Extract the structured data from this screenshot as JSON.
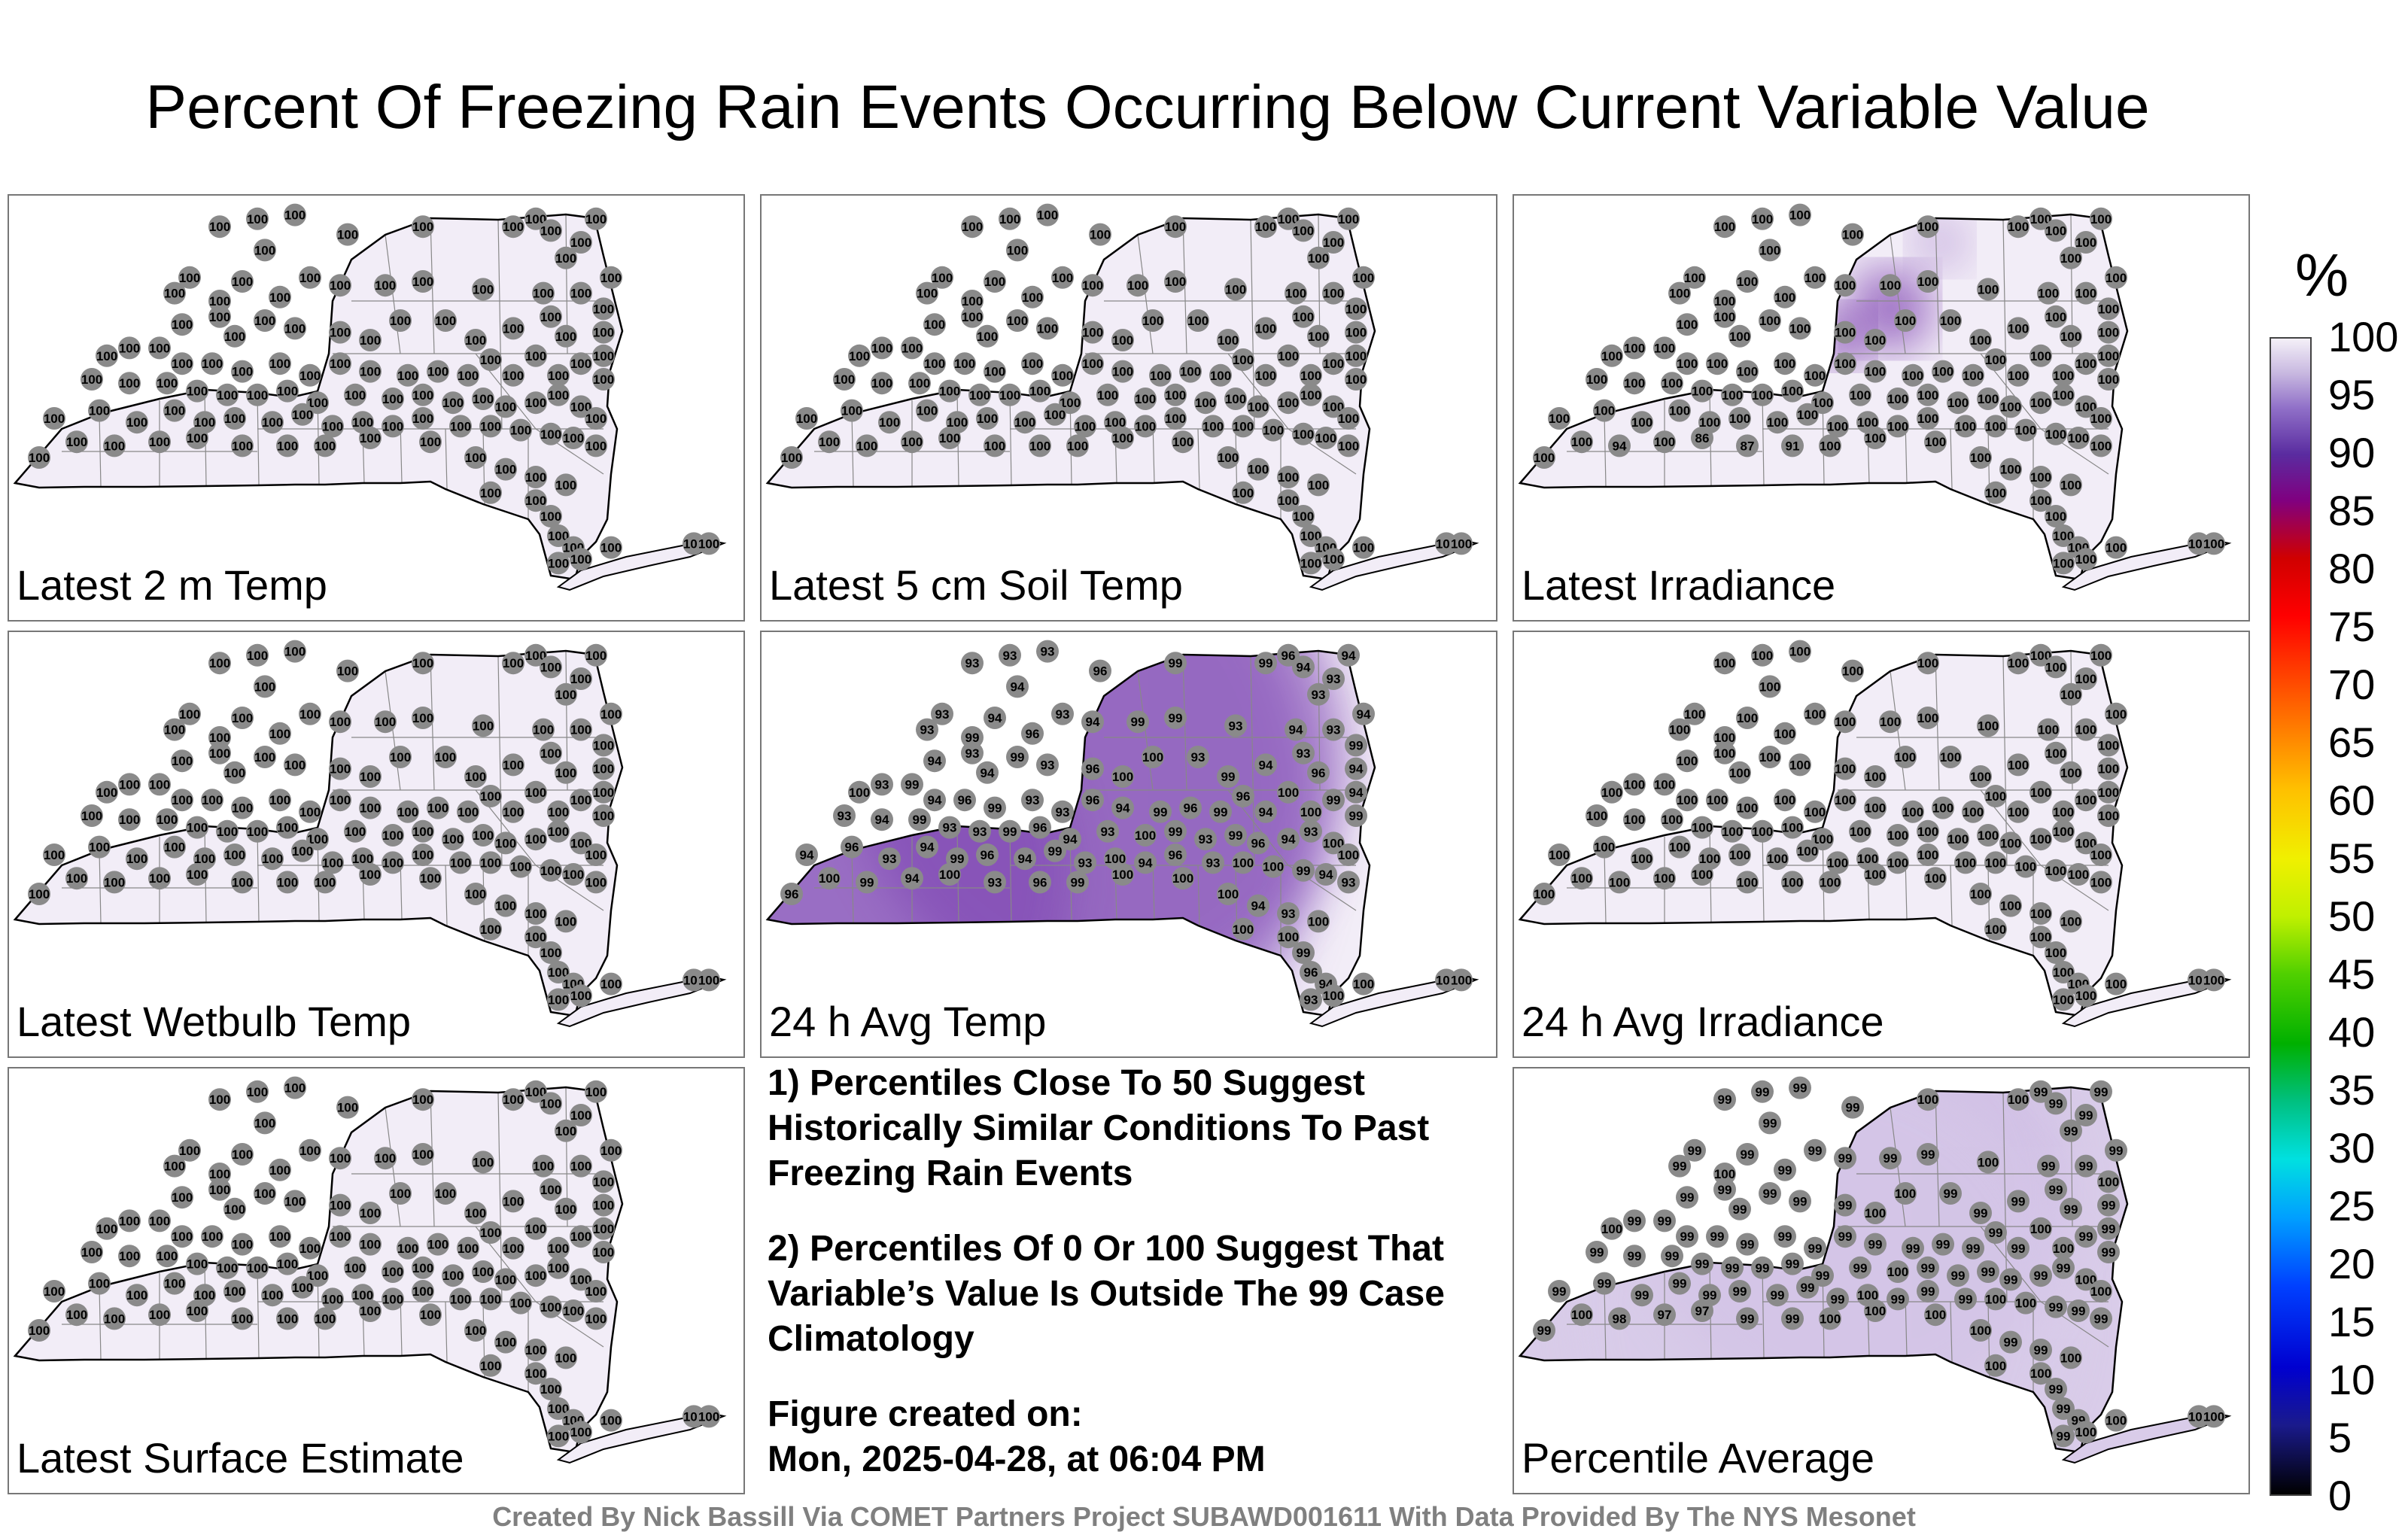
{
  "title": "Percent Of Freezing Rain Events Occurring Below Current Variable Value",
  "panels": [
    {
      "label": "Latest 2 m Temp",
      "values": [
        100,
        100,
        100,
        100,
        100,
        100,
        100,
        100,
        100,
        100,
        100,
        100,
        100,
        100,
        100,
        100,
        100,
        100,
        100,
        100,
        100,
        100,
        100,
        100,
        100,
        100,
        100,
        100,
        100,
        100,
        100,
        100,
        100,
        100,
        100,
        100,
        100,
        100,
        100,
        100,
        100,
        100,
        100,
        100,
        100,
        100,
        100,
        100,
        100,
        100,
        100,
        100,
        100,
        100,
        100,
        100,
        100,
        100,
        100,
        100,
        100,
        100,
        100,
        100,
        100,
        100,
        100,
        100,
        100,
        100,
        100,
        100,
        100,
        100,
        100,
        100,
        100,
        100,
        100,
        100,
        100,
        100,
        100,
        100,
        100,
        100,
        100,
        100,
        100,
        100,
        100,
        100,
        100,
        100,
        100,
        100,
        100,
        100,
        100,
        100,
        100,
        100,
        100,
        100,
        100,
        100,
        100,
        100,
        100,
        100,
        100,
        100,
        100,
        100,
        100,
        100,
        100,
        100,
        100,
        100
      ]
    },
    {
      "label": "Latest 5 cm Soil Temp",
      "values": [
        100,
        100,
        100,
        100,
        100,
        100,
        100,
        100,
        100,
        100,
        100,
        100,
        100,
        100,
        100,
        100,
        100,
        100,
        100,
        100,
        100,
        100,
        100,
        100,
        100,
        100,
        100,
        100,
        100,
        100,
        100,
        100,
        100,
        100,
        100,
        100,
        100,
        100,
        100,
        100,
        100,
        100,
        100,
        100,
        100,
        100,
        100,
        100,
        100,
        100,
        100,
        100,
        100,
        100,
        100,
        100,
        100,
        100,
        100,
        100,
        100,
        100,
        100,
        100,
        100,
        100,
        100,
        100,
        100,
        100,
        100,
        100,
        100,
        100,
        100,
        100,
        100,
        100,
        100,
        100,
        100,
        100,
        100,
        100,
        100,
        100,
        100,
        100,
        100,
        100,
        100,
        100,
        100,
        100,
        100,
        100,
        100,
        100,
        100,
        100,
        100,
        100,
        100,
        100,
        100,
        100,
        100,
        100,
        100,
        100,
        100,
        100,
        100,
        100,
        100,
        100,
        100,
        100,
        100,
        100
      ]
    },
    {
      "label": "Latest Irradiance",
      "values": [
        100,
        100,
        100,
        100,
        100,
        100,
        100,
        100,
        100,
        100,
        100,
        100,
        100,
        100,
        100,
        100,
        100,
        100,
        100,
        100,
        100,
        100,
        100,
        100,
        100,
        100,
        100,
        100,
        100,
        100,
        100,
        100,
        100,
        100,
        100,
        100,
        100,
        100,
        100,
        100,
        100,
        100,
        100,
        100,
        100,
        100,
        100,
        100,
        100,
        100,
        100,
        100,
        100,
        100,
        100,
        100,
        100,
        100,
        100,
        100,
        100,
        100,
        100,
        100,
        100,
        100,
        100,
        100,
        100,
        100,
        100,
        100,
        100,
        100,
        100,
        100,
        100,
        100,
        100,
        100,
        100,
        100,
        100,
        100,
        100,
        100,
        100,
        100,
        100,
        100,
        100,
        100,
        100,
        100,
        100,
        100,
        100,
        100,
        94,
        100,
        86,
        87,
        91,
        100,
        100,
        100,
        100,
        100,
        100,
        100,
        100,
        100,
        100,
        100,
        100,
        100,
        100,
        100,
        100,
        100
      ]
    },
    {
      "label": "Latest Wetbulb Temp",
      "values": [
        100,
        100,
        100,
        100,
        100,
        100,
        100,
        100,
        100,
        100,
        100,
        100,
        100,
        100,
        100,
        100,
        100,
        100,
        100,
        100,
        100,
        100,
        100,
        100,
        100,
        100,
        100,
        100,
        100,
        100,
        100,
        100,
        100,
        100,
        100,
        100,
        100,
        100,
        100,
        100,
        100,
        100,
        100,
        100,
        100,
        100,
        100,
        100,
        100,
        100,
        100,
        100,
        100,
        100,
        100,
        100,
        100,
        100,
        100,
        100,
        100,
        100,
        100,
        100,
        100,
        100,
        100,
        100,
        100,
        100,
        100,
        100,
        100,
        100,
        100,
        100,
        100,
        100,
        100,
        100,
        100,
        100,
        100,
        100,
        100,
        100,
        100,
        100,
        100,
        100,
        100,
        100,
        100,
        100,
        100,
        100,
        100,
        100,
        100,
        100,
        100,
        100,
        100,
        100,
        100,
        100,
        100,
        100,
        100,
        100,
        100,
        100,
        100,
        100,
        100,
        100,
        100,
        100,
        100,
        100
      ]
    },
    {
      "label": "24 h Avg Temp",
      "values": [
        93,
        93,
        93,
        94,
        96,
        99,
        99,
        96,
        94,
        93,
        94,
        93,
        94,
        93,
        93,
        99,
        94,
        93,
        94,
        96,
        93,
        94,
        99,
        99,
        93,
        94,
        93,
        99,
        94,
        99,
        93,
        96,
        100,
        100,
        93,
        99,
        94,
        93,
        96,
        94,
        100,
        93,
        99,
        94,
        96,
        99,
        93,
        93,
        96,
        94,
        99,
        96,
        99,
        96,
        94,
        100,
        100,
        99,
        94,
        99,
        93,
        94,
        99,
        93,
        93,
        99,
        96,
        94,
        93,
        100,
        99,
        93,
        99,
        96,
        94,
        93,
        100,
        100,
        94,
        96,
        93,
        94,
        99,
        96,
        94,
        99,
        93,
        100,
        94,
        96,
        93,
        100,
        100,
        99,
        94,
        93,
        96,
        100,
        99,
        94,
        100,
        93,
        96,
        99,
        100,
        94,
        93,
        100,
        100,
        99,
        96,
        94,
        93,
        100,
        100,
        100,
        100,
        100,
        100,
        100
      ]
    },
    {
      "label": "24 h Avg Irradiance",
      "values": [
        100,
        100,
        100,
        100,
        100,
        100,
        100,
        100,
        100,
        100,
        100,
        100,
        100,
        100,
        100,
        100,
        100,
        100,
        100,
        100,
        100,
        100,
        100,
        100,
        100,
        100,
        100,
        100,
        100,
        100,
        100,
        100,
        100,
        100,
        100,
        100,
        100,
        100,
        100,
        100,
        100,
        100,
        100,
        100,
        100,
        100,
        100,
        100,
        100,
        100,
        100,
        100,
        100,
        100,
        100,
        100,
        100,
        100,
        100,
        100,
        100,
        100,
        100,
        100,
        100,
        100,
        100,
        100,
        100,
        100,
        100,
        100,
        100,
        100,
        100,
        100,
        100,
        100,
        100,
        100,
        100,
        100,
        100,
        100,
        100,
        100,
        100,
        100,
        100,
        100,
        100,
        100,
        100,
        100,
        100,
        100,
        100,
        100,
        100,
        100,
        100,
        100,
        100,
        100,
        100,
        100,
        100,
        100,
        100,
        100,
        100,
        100,
        100,
        100,
        100,
        100,
        100,
        100,
        100,
        100
      ]
    },
    {
      "label": "Latest Surface Estimate",
      "values": [
        100,
        100,
        100,
        100,
        100,
        100,
        100,
        100,
        100,
        100,
        100,
        100,
        100,
        100,
        100,
        100,
        100,
        100,
        100,
        100,
        100,
        100,
        100,
        100,
        100,
        100,
        100,
        100,
        100,
        100,
        100,
        100,
        100,
        100,
        100,
        100,
        100,
        100,
        100,
        100,
        100,
        100,
        100,
        100,
        100,
        100,
        100,
        100,
        100,
        100,
        100,
        100,
        100,
        100,
        100,
        100,
        100,
        100,
        100,
        100,
        100,
        100,
        100,
        100,
        100,
        100,
        100,
        100,
        100,
        100,
        100,
        100,
        100,
        100,
        100,
        100,
        100,
        100,
        100,
        100,
        100,
        100,
        100,
        100,
        100,
        100,
        100,
        100,
        100,
        100,
        100,
        100,
        100,
        100,
        100,
        100,
        100,
        100,
        100,
        100,
        100,
        100,
        100,
        100,
        100,
        100,
        100,
        100,
        100,
        100,
        100,
        100,
        100,
        100,
        100,
        100,
        100,
        100,
        100,
        100
      ]
    },
    {
      "label": "Percentile Average",
      "values": [
        99,
        99,
        99,
        99,
        99,
        100,
        100,
        99,
        99,
        99,
        99,
        99,
        99,
        99,
        99,
        100,
        99,
        99,
        99,
        99,
        99,
        99,
        99,
        99,
        100,
        99,
        99,
        100,
        99,
        99,
        99,
        99,
        100,
        100,
        99,
        99,
        99,
        99,
        99,
        99,
        100,
        99,
        99,
        99,
        99,
        99,
        99,
        99,
        99,
        99,
        99,
        99,
        99,
        99,
        99,
        100,
        100,
        99,
        99,
        99,
        99,
        99,
        99,
        99,
        99,
        99,
        99,
        99,
        99,
        100,
        99,
        99,
        99,
        99,
        99,
        99,
        100,
        100,
        99,
        99,
        99,
        99,
        99,
        99,
        99,
        99,
        99,
        100,
        99,
        99,
        99,
        100,
        100,
        99,
        99,
        99,
        99,
        100,
        98,
        97,
        97,
        99,
        99,
        100,
        100,
        99,
        99,
        100,
        100,
        99,
        99,
        99,
        99,
        100,
        100,
        100,
        100,
        100,
        100,
        100
      ]
    }
  ],
  "notes": {
    "note1": "1) Percentiles Close To 50 Suggest Historically Similar Conditions To Past Freezing Rain Events",
    "note2": "2) Percentiles Of 0 Or 100 Suggest That Variable’s Value Is Outside The 99 Case Climatology",
    "created_label": "Figure created on:",
    "created_date": "Mon, 2025-04-28, at 06:04 PM"
  },
  "colorbar": {
    "unit": "%",
    "ticks": [
      "100",
      "95",
      "90",
      "85",
      "80",
      "75",
      "70",
      "65",
      "60",
      "55",
      "50",
      "45",
      "40",
      "35",
      "30",
      "25",
      "20",
      "15",
      "10",
      "5",
      "0"
    ]
  },
  "footer": "Created By Nick Bassill Via COMET Partners Project SUBAWD001611 With Data Provided By The NYS Mesonet",
  "colors": {
    "state_fill_light": "#f2edf7",
    "state_fill_mid": "#d9cce9",
    "state_fill_dark": "#8450b4",
    "marker": "#8a8a8a",
    "border": "#000000",
    "county_lines": "#888888"
  }
}
